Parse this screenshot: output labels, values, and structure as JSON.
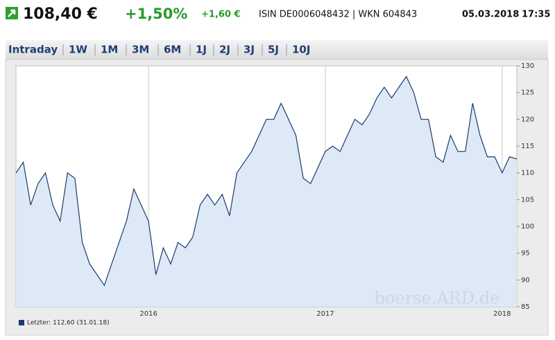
{
  "header": {
    "price": "108,40 €",
    "change_pct": "+1,50%",
    "change_abs": "+1,60 €",
    "ids": "ISIN DE0006048432 | WKN 604843",
    "date": "05.03.2018",
    "time": "17:35"
  },
  "tabs": [
    "Intraday",
    "1W",
    "1M",
    "3M",
    "6M",
    "1J",
    "2J",
    "3J",
    "5J",
    "10J"
  ],
  "watermark": "boerse.ARD.de",
  "chart_data": {
    "type": "area",
    "categories": [
      null,
      null,
      null,
      null,
      null,
      null,
      null,
      null,
      null,
      null,
      null,
      null,
      null,
      null,
      null,
      null,
      null,
      null,
      "2016",
      null,
      null,
      null,
      null,
      null,
      null,
      null,
      null,
      null,
      null,
      null,
      null,
      null,
      null,
      null,
      null,
      null,
      null,
      null,
      null,
      null,
      null,
      null,
      "2017",
      null,
      null,
      null,
      null,
      null,
      null,
      null,
      null,
      null,
      null,
      null,
      null,
      null,
      null,
      null,
      null,
      null,
      null,
      null,
      null,
      null,
      null,
      null,
      "2018",
      null,
      null
    ],
    "series": [
      {
        "name": "Letzter: 112,60 (31.01.18)",
        "color": "#1a3a6b",
        "values": [
          110,
          112,
          104,
          108,
          110,
          104,
          101,
          110,
          109,
          97,
          93,
          91,
          89,
          93,
          97,
          101,
          107,
          104,
          101,
          91,
          96,
          93,
          97,
          96,
          98,
          104,
          106,
          104,
          106,
          102,
          110,
          112,
          114,
          117,
          120,
          120,
          123,
          120,
          117,
          109,
          108,
          111,
          114,
          115,
          114,
          117,
          120,
          119,
          121,
          124,
          126,
          124,
          126,
          128,
          125,
          120,
          120,
          113,
          112,
          117,
          114,
          114,
          123,
          117,
          113,
          113,
          110,
          113,
          112.6
        ]
      }
    ],
    "ylim": [
      85,
      130
    ],
    "yticks": [
      85,
      90,
      95,
      100,
      105,
      110,
      115,
      120,
      125,
      130
    ],
    "fill": "#dde9f6",
    "grid": true
  }
}
